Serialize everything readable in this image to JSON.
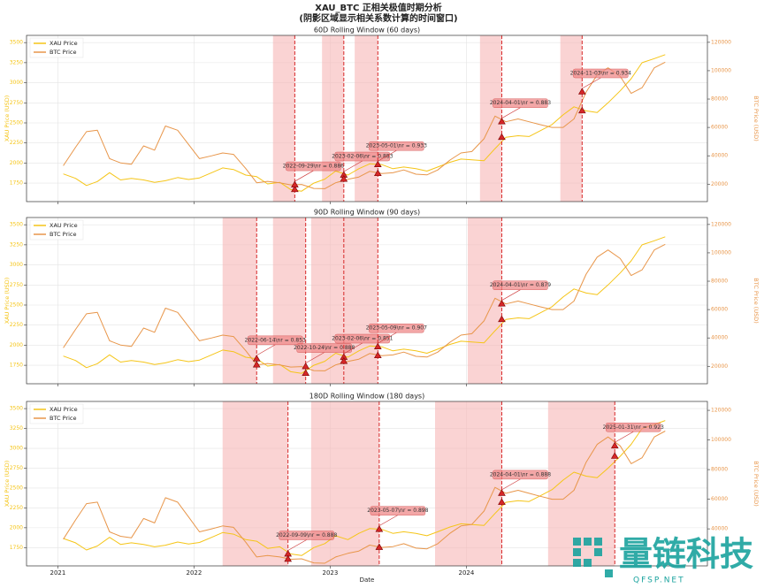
{
  "title": "XAU_BTC 正相关极值时期分析",
  "subtitle": "(阴影区域显示相关系数计算的时间窗口)",
  "watermark": {
    "name": "量链科技",
    "site": "QFSP.NET"
  },
  "chart_data": [
    {
      "type": "line",
      "title": "60D Rolling Window (60 days)",
      "ylabel": "XAU Price (USD)",
      "y2label": "BTC Price (USD)",
      "legend": "upper left",
      "grid": true,
      "xlim": [
        2020.77,
        2025.77
      ],
      "xticks": [
        2021,
        2022,
        2023,
        2024
      ],
      "ylim": [
        1520,
        3590
      ],
      "yticks": [
        1750,
        2000,
        2250,
        2500,
        2750,
        3000,
        3250,
        3500
      ],
      "y2lim": [
        7700,
        124900
      ],
      "y2ticks": [
        20000,
        40000,
        60000,
        80000,
        100000,
        120000
      ],
      "x": [
        2021.04,
        2021.13,
        2021.21,
        2021.29,
        2021.38,
        2021.46,
        2021.54,
        2021.63,
        2021.71,
        2021.79,
        2021.88,
        2021.96,
        2022.04,
        2022.13,
        2022.21,
        2022.29,
        2022.38,
        2022.46,
        2022.54,
        2022.63,
        2022.71,
        2022.79,
        2022.88,
        2022.96,
        2023.04,
        2023.13,
        2023.21,
        2023.29,
        2023.38,
        2023.46,
        2023.54,
        2023.63,
        2023.71,
        2023.79,
        2023.88,
        2023.96,
        2024.04,
        2024.13,
        2024.21,
        2024.29,
        2024.38,
        2024.46,
        2024.54,
        2024.63,
        2024.71,
        2024.79,
        2024.88,
        2024.96,
        2025.04,
        2025.13,
        2025.21,
        2025.29,
        2025.38,
        2025.46
      ],
      "series": [
        {
          "name": "XAU Price",
          "color": "#f5c518",
          "values": [
            1865,
            1810,
            1720,
            1770,
            1880,
            1790,
            1810,
            1790,
            1760,
            1780,
            1820,
            1795,
            1815,
            1880,
            1940,
            1920,
            1850,
            1830,
            1740,
            1760,
            1670,
            1650,
            1750,
            1800,
            1900,
            1850,
            1930,
            1990,
            1980,
            1930,
            1950,
            1930,
            1900,
            1950,
            2010,
            2050,
            2040,
            2030,
            2180,
            2320,
            2340,
            2330,
            2400,
            2480,
            2600,
            2700,
            2650,
            2630,
            2750,
            2900,
            3050,
            3250,
            3300,
            3350
          ]
        },
        {
          "name": "BTC Price",
          "color": "#e8964a",
          "axis": "y2",
          "values": [
            33000,
            46000,
            57000,
            58000,
            38000,
            35000,
            34000,
            47000,
            44000,
            61000,
            58000,
            48000,
            38000,
            40000,
            42000,
            41000,
            31000,
            21000,
            22000,
            21000,
            19500,
            19800,
            17000,
            16800,
            21000,
            23500,
            25000,
            29000,
            27500,
            28000,
            30000,
            27000,
            26500,
            30000,
            37000,
            42000,
            43000,
            52000,
            68000,
            64000,
            66000,
            64000,
            62000,
            60000,
            60000,
            66000,
            85000,
            97000,
            102000,
            96000,
            84000,
            88000,
            102000,
            106000
          ]
        }
      ],
      "annotations": [
        {
          "label": "2022-09-29\\nr = 0.886",
          "start": 2022.58,
          "x": 2022.74,
          "xau": 1670,
          "btc": 19500
        },
        {
          "label": "2023-02-06\\nr = 0.883",
          "start": 2022.94,
          "x": 2023.1,
          "xau": 1850,
          "btc": 23500
        },
        {
          "label": "2023-05-01\\nr = 0.933",
          "start": 2023.18,
          "x": 2023.35,
          "xau": 1980,
          "btc": 27500
        },
        {
          "label": "2024-04-01\\nr = 0.883",
          "start": 2024.1,
          "x": 2024.26,
          "xau": 2320,
          "btc": 64000
        },
        {
          "label": "2024-11-03\\nr = 0.934",
          "start": 2024.69,
          "x": 2024.85,
          "xau": 2650,
          "btc": 85000
        }
      ]
    },
    {
      "type": "line",
      "title": "90D Rolling Window (90 days)",
      "ylabel": "XAU Price (USD)",
      "y2label": "BTC Price (USD)",
      "legend": "upper left",
      "grid": true,
      "xlim": [
        2020.77,
        2025.77
      ],
      "xticks": [
        2021,
        2022,
        2023,
        2024
      ],
      "ylim": [
        1520,
        3590
      ],
      "yticks": [
        1750,
        2000,
        2250,
        2500,
        2750,
        3000,
        3250,
        3500
      ],
      "y2lim": [
        7700,
        124900
      ],
      "y2ticks": [
        20000,
        40000,
        60000,
        80000,
        100000,
        120000
      ],
      "x": [
        2021.04,
        2021.13,
        2021.21,
        2021.29,
        2021.38,
        2021.46,
        2021.54,
        2021.63,
        2021.71,
        2021.79,
        2021.88,
        2021.96,
        2022.04,
        2022.13,
        2022.21,
        2022.29,
        2022.38,
        2022.46,
        2022.54,
        2022.63,
        2022.71,
        2022.79,
        2022.88,
        2022.96,
        2023.04,
        2023.13,
        2023.21,
        2023.29,
        2023.38,
        2023.46,
        2023.54,
        2023.63,
        2023.71,
        2023.79,
        2023.88,
        2023.96,
        2024.04,
        2024.13,
        2024.21,
        2024.29,
        2024.38,
        2024.46,
        2024.54,
        2024.63,
        2024.71,
        2024.79,
        2024.88,
        2024.96,
        2025.04,
        2025.13,
        2025.21,
        2025.29,
        2025.38,
        2025.46
      ],
      "series": [
        {
          "name": "XAU Price",
          "color": "#f5c518",
          "values": [
            1865,
            1810,
            1720,
            1770,
            1880,
            1790,
            1810,
            1790,
            1760,
            1780,
            1820,
            1795,
            1815,
            1880,
            1940,
            1920,
            1850,
            1830,
            1740,
            1760,
            1670,
            1650,
            1750,
            1800,
            1900,
            1850,
            1930,
            1990,
            1980,
            1930,
            1950,
            1930,
            1900,
            1950,
            2010,
            2050,
            2040,
            2030,
            2180,
            2320,
            2340,
            2330,
            2400,
            2480,
            2600,
            2700,
            2650,
            2630,
            2750,
            2900,
            3050,
            3250,
            3300,
            3350
          ]
        },
        {
          "name": "BTC Price",
          "color": "#e8964a",
          "axis": "y2",
          "values": [
            33000,
            46000,
            57000,
            58000,
            38000,
            35000,
            34000,
            47000,
            44000,
            61000,
            58000,
            48000,
            38000,
            40000,
            42000,
            41000,
            31000,
            21000,
            22000,
            21000,
            19500,
            19800,
            17000,
            16800,
            21000,
            23500,
            25000,
            29000,
            27500,
            28000,
            30000,
            27000,
            26500,
            30000,
            37000,
            42000,
            43000,
            52000,
            68000,
            64000,
            66000,
            64000,
            62000,
            60000,
            60000,
            66000,
            85000,
            97000,
            102000,
            96000,
            84000,
            88000,
            102000,
            106000
          ]
        }
      ],
      "annotations": [
        {
          "label": "2022-06-14\\nr = 0.853",
          "start": 2022.21,
          "x": 2022.46,
          "xau": 1830,
          "btc": 21000
        },
        {
          "label": "2022-10-24\\nr = 0.888",
          "start": 2022.58,
          "x": 2022.82,
          "xau": 1650,
          "btc": 19800
        },
        {
          "label": "2023-02-06\\nr = 0.851",
          "start": 2022.86,
          "x": 2023.1,
          "xau": 1850,
          "btc": 23500
        },
        {
          "label": "2023-05-09\\nr = 0.907",
          "start": 2023.1,
          "x": 2023.35,
          "xau": 1980,
          "btc": 27500
        },
        {
          "label": "2024-04-01\\nr = 0.879",
          "start": 2024.01,
          "x": 2024.26,
          "xau": 2320,
          "btc": 64000
        }
      ]
    },
    {
      "type": "line",
      "title": "180D Rolling Window (180 days)",
      "xlabel": "Date",
      "ylabel": "XAU Price (USD)",
      "y2label": "BTC Price (USD)",
      "legend": "upper left",
      "grid": true,
      "xlim": [
        2020.77,
        2025.77
      ],
      "xticks": [
        2021,
        2022,
        2023,
        2024
      ],
      "ylim": [
        1520,
        3590
      ],
      "yticks": [
        1750,
        2000,
        2250,
        2500,
        2750,
        3000,
        3250,
        3500
      ],
      "y2lim": [
        15000,
        126000
      ],
      "y2ticks": [
        40000,
        60000,
        80000,
        100000,
        120000
      ],
      "x": [
        2021.04,
        2021.13,
        2021.21,
        2021.29,
        2021.38,
        2021.46,
        2021.54,
        2021.63,
        2021.71,
        2021.79,
        2021.88,
        2021.96,
        2022.04,
        2022.13,
        2022.21,
        2022.29,
        2022.38,
        2022.46,
        2022.54,
        2022.63,
        2022.71,
        2022.79,
        2022.88,
        2022.96,
        2023.04,
        2023.13,
        2023.21,
        2023.29,
        2023.38,
        2023.46,
        2023.54,
        2023.63,
        2023.71,
        2023.79,
        2023.88,
        2023.96,
        2024.04,
        2024.13,
        2024.21,
        2024.29,
        2024.38,
        2024.46,
        2024.54,
        2024.63,
        2024.71,
        2024.79,
        2024.88,
        2024.96,
        2025.04,
        2025.13,
        2025.21,
        2025.29,
        2025.38,
        2025.46
      ],
      "series": [
        {
          "name": "XAU Price",
          "color": "#f5c518",
          "values": [
            1865,
            1810,
            1720,
            1770,
            1880,
            1790,
            1810,
            1790,
            1760,
            1780,
            1820,
            1795,
            1815,
            1880,
            1940,
            1920,
            1850,
            1830,
            1740,
            1760,
            1670,
            1650,
            1750,
            1800,
            1900,
            1850,
            1930,
            1990,
            1980,
            1930,
            1950,
            1930,
            1900,
            1950,
            2010,
            2050,
            2040,
            2030,
            2180,
            2320,
            2340,
            2330,
            2400,
            2480,
            2600,
            2700,
            2650,
            2630,
            2750,
            2900,
            3050,
            3250,
            3300,
            3350
          ]
        },
        {
          "name": "BTC Price",
          "color": "#e8964a",
          "axis": "y2",
          "values": [
            33000,
            46000,
            57000,
            58000,
            38000,
            35000,
            34000,
            47000,
            44000,
            61000,
            58000,
            48000,
            38000,
            40000,
            42000,
            41000,
            31000,
            21000,
            22000,
            21000,
            19500,
            19800,
            17000,
            16800,
            21000,
            23500,
            25000,
            29000,
            27500,
            28000,
            30000,
            27000,
            26500,
            30000,
            37000,
            42000,
            43000,
            52000,
            68000,
            64000,
            66000,
            64000,
            62000,
            60000,
            60000,
            66000,
            85000,
            97000,
            102000,
            96000,
            84000,
            88000,
            102000,
            106000
          ]
        }
      ],
      "annotations": [
        {
          "label": "2022-09-09\\nr = 0.888",
          "start": 2022.21,
          "x": 2022.69,
          "xau": 1670,
          "btc": 19500
        },
        {
          "label": "2023-05-07\\nr = 0.898",
          "start": 2022.86,
          "x": 2023.36,
          "xau": 1980,
          "btc": 27500
        },
        {
          "label": "2024-04-01\\nr = 0.888",
          "start": 2023.77,
          "x": 2024.26,
          "xau": 2320,
          "btc": 64000
        },
        {
          "label": "2025-01-31\\nr = 0.923",
          "start": 2024.6,
          "x": 2025.09,
          "xau": 2900,
          "btc": 96000
        }
      ]
    }
  ]
}
